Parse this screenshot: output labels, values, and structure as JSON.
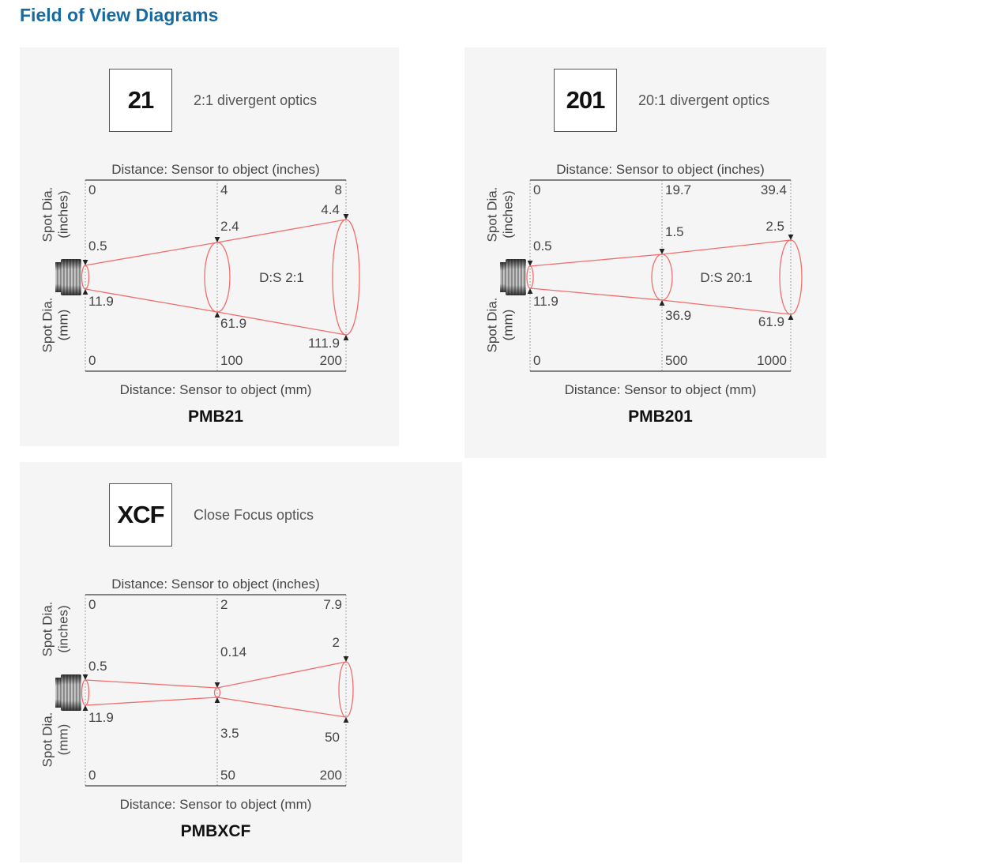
{
  "page": {
    "heading": "Field of View Diagrams"
  },
  "colors": {
    "heading": "#166a9f",
    "beam_red": "#f26d6d",
    "panel_bg": "#f5f5f5",
    "label_gray": "#454545"
  },
  "diagrams": [
    {
      "id": "pmb21",
      "badge": "21",
      "optics": "2:1 divergent optics",
      "model": "PMB21",
      "ds_label": "D:S 2:1",
      "top_axis_title": "Distance: Sensor to object (inches)",
      "bottom_axis_title": "Distance: Sensor to object (mm)",
      "left_axis_inches": [
        "Spot Dia.",
        "(inches)"
      ],
      "left_axis_mm": [
        "Spot Dia.",
        "(mm)"
      ],
      "top_ticks": [
        "0",
        "4",
        "8"
      ],
      "bottom_ticks": [
        "0",
        "100",
        "200"
      ],
      "spot_inches": {
        "near": "0.5",
        "mid": "2.4",
        "far": "4.4"
      },
      "spot_mm": {
        "near": "11.9",
        "mid": "61.9",
        "far": "111.9"
      }
    },
    {
      "id": "pmb201",
      "badge": "201",
      "optics": "20:1 divergent optics",
      "model": "PMB201",
      "ds_label": "D:S 20:1",
      "top_axis_title": "Distance: Sensor to object (inches)",
      "bottom_axis_title": "Distance: Sensor to object (mm)",
      "left_axis_inches": [
        "Spot Dia.",
        "(inches)"
      ],
      "left_axis_mm": [
        "Spot Dia.",
        "(mm)"
      ],
      "top_ticks": [
        "0",
        "19.7",
        "39.4"
      ],
      "bottom_ticks": [
        "0",
        "500",
        "1000"
      ],
      "spot_inches": {
        "near": "0.5",
        "mid": "1.5",
        "far": "2.5"
      },
      "spot_mm": {
        "near": "11.9",
        "mid": "36.9",
        "far": "61.9"
      }
    },
    {
      "id": "pmbxcf",
      "badge": "XCF",
      "optics": "Close Focus optics",
      "model": "PMBXCF",
      "top_axis_title": "Distance: Sensor to object (inches)",
      "bottom_axis_title": "Distance: Sensor to object (mm)",
      "left_axis_inches": [
        "Spot Dia.",
        "(inches)"
      ],
      "left_axis_mm": [
        "Spot Dia.",
        "(mm)"
      ],
      "top_ticks": [
        "0",
        "2",
        "7.9"
      ],
      "bottom_ticks": [
        "0",
        "50",
        "200"
      ],
      "spot_inches": {
        "near": "0.5",
        "mid": "0.14",
        "far": "2"
      },
      "spot_mm": {
        "near": "11.9",
        "mid": "3.5",
        "far": "50"
      }
    }
  ]
}
